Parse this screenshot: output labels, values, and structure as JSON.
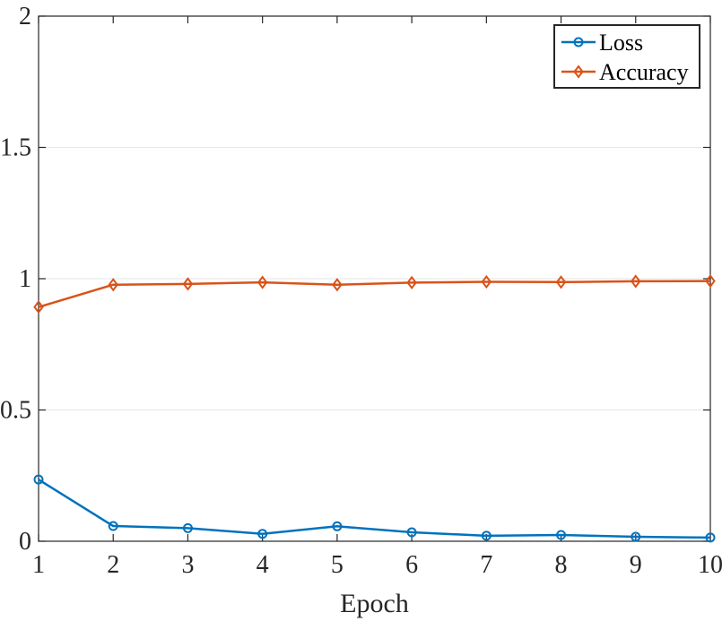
{
  "chart_data": {
    "type": "line",
    "xlabel": "Epoch",
    "ylabel": "",
    "x": [
      1,
      2,
      3,
      4,
      5,
      6,
      7,
      8,
      9,
      10
    ],
    "xlim": [
      1,
      10
    ],
    "ylim": [
      0,
      2
    ],
    "xticks": [
      "1",
      "2",
      "3",
      "4",
      "5",
      "6",
      "7",
      "8",
      "9",
      "10"
    ],
    "yticks": [
      "0",
      "0.5",
      "1",
      "1.5",
      "2"
    ],
    "ytick_values": [
      0,
      0.5,
      1,
      1.5,
      2
    ],
    "grid": "horizontal",
    "legend_position": "top-right",
    "series": [
      {
        "name": "Loss",
        "color": "#0072BD",
        "marker": "circle",
        "values": [
          0.235,
          0.058,
          0.05,
          0.028,
          0.057,
          0.034,
          0.021,
          0.024,
          0.017,
          0.014
        ]
      },
      {
        "name": "Accuracy",
        "color": "#D95319",
        "marker": "diamond",
        "values": [
          0.892,
          0.977,
          0.98,
          0.986,
          0.977,
          0.985,
          0.988,
          0.987,
          0.99,
          0.991
        ]
      }
    ]
  }
}
